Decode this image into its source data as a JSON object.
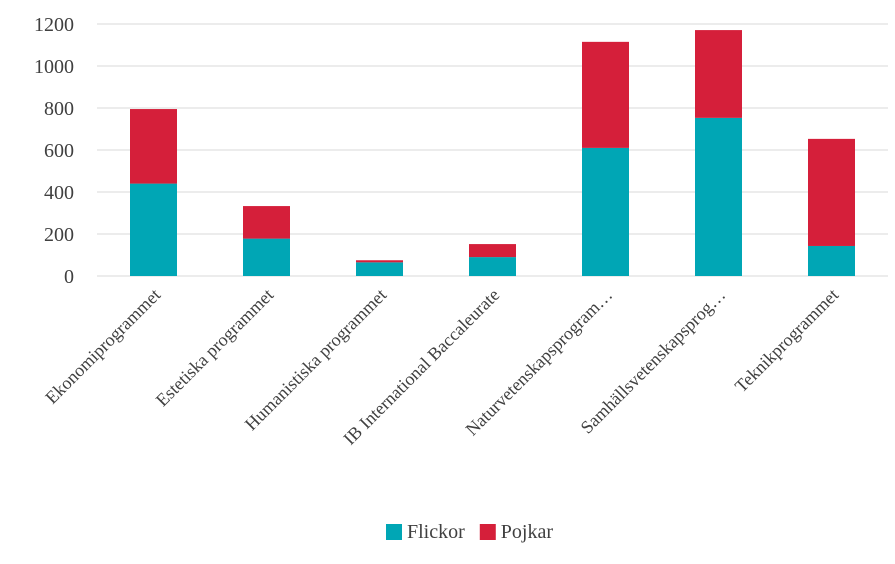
{
  "chart_data": {
    "type": "bar",
    "stacked": true,
    "categories": [
      "Ekonomiprogrammet",
      "Estetiska programmet",
      "Humanistiska programmet",
      "IB International Baccaleurate",
      "Naturvetenskapsprogram…",
      "Samhällsvetenskapsprog…",
      "Teknikprogrammet"
    ],
    "series": [
      {
        "name": "Flickor",
        "color": "#00A6B5",
        "values": [
          440,
          178,
          65,
          90,
          610,
          753,
          143
        ]
      },
      {
        "name": "Pojkar",
        "color": "#D51F3A",
        "values": [
          355,
          155,
          10,
          62,
          505,
          418,
          510
        ]
      }
    ],
    "y_ticks": [
      "0",
      "200",
      "400",
      "600",
      "800",
      "1000",
      "1200"
    ],
    "ylim": [
      0,
      1200
    ],
    "grid": true,
    "legend_position": "bottom",
    "title": "",
    "xlabel": "",
    "ylabel": ""
  }
}
